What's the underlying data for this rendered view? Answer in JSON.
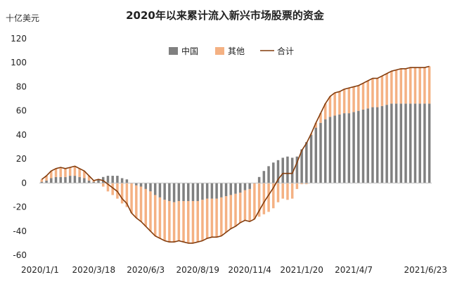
{
  "chart_data": {
    "type": "bar",
    "title": "2020年以来累计流入新兴市场股票的资金",
    "unit_label": "十亿美元",
    "ylim": [
      -60,
      120
    ],
    "y_ticks": [
      -60,
      -40,
      -20,
      0,
      20,
      40,
      60,
      80,
      100,
      120
    ],
    "x_tick_labels": [
      "2020/1/1",
      "2020/3/18",
      "2020/6/3",
      "2020/8/19",
      "2020/11/4",
      "2021/1/20",
      "2021/4/7",
      "2021/6/23"
    ],
    "legend": [
      "中国",
      "其他",
      "合计"
    ],
    "colors": {
      "china": "#808080",
      "other": "#f4b183",
      "total": "#843c0c"
    },
    "series": [
      {
        "name": "中国",
        "values": [
          1,
          2,
          4,
          5,
          5,
          5,
          6,
          6,
          5,
          4,
          2,
          1,
          3,
          5,
          6,
          6,
          6,
          4,
          3,
          0,
          -2,
          -3,
          -5,
          -7,
          -10,
          -12,
          -14,
          -15,
          -16,
          -15,
          -15,
          -15,
          -15,
          -15,
          -14,
          -13,
          -13,
          -13,
          -12,
          -11,
          -10,
          -9,
          -8,
          -6,
          -5,
          0,
          5,
          10,
          14,
          17,
          19,
          21,
          22,
          21,
          22,
          28,
          34,
          40,
          46,
          50,
          53,
          55,
          56,
          57,
          58,
          58,
          59,
          60,
          61,
          62,
          63,
          63,
          64,
          65,
          66,
          66,
          66,
          66,
          66,
          66,
          66,
          66,
          66
        ]
      },
      {
        "name": "其他",
        "values": [
          2,
          4,
          6,
          7,
          8,
          7,
          7,
          8,
          7,
          6,
          4,
          1,
          0,
          -3,
          -7,
          -10,
          -13,
          -17,
          -20,
          -25,
          -27,
          -29,
          -31,
          -33,
          -34,
          -34,
          -34,
          -34,
          -33,
          -33,
          -34,
          -35,
          -35,
          -34,
          -34,
          -33,
          -32,
          -32,
          -32,
          -30,
          -28,
          -27,
          -25,
          -25,
          -27,
          -30,
          -28,
          -26,
          -24,
          -21,
          -16,
          -13,
          -14,
          -13,
          -5,
          -1,
          -1,
          1,
          4,
          8,
          13,
          17,
          19,
          19,
          20,
          21,
          21,
          21,
          22,
          23,
          24,
          24,
          25,
          26,
          27,
          28,
          29,
          29,
          30,
          30,
          30,
          30,
          31
        ]
      },
      {
        "name": "合计",
        "values": [
          3,
          6,
          10,
          12,
          13,
          12,
          13,
          14,
          12,
          10,
          6,
          2,
          3,
          2,
          -1,
          -4,
          -7,
          -13,
          -17,
          -25,
          -29,
          -32,
          -36,
          -40,
          -44,
          -46,
          -48,
          -49,
          -49,
          -48,
          -49,
          -50,
          -50,
          -49,
          -48,
          -46,
          -45,
          -45,
          -44,
          -41,
          -38,
          -36,
          -33,
          -31,
          -32,
          -30,
          -23,
          -16,
          -10,
          -4,
          3,
          8,
          8,
          8,
          17,
          27,
          33,
          41,
          50,
          58,
          66,
          72,
          75,
          76,
          78,
          79,
          80,
          81,
          83,
          85,
          87,
          87,
          89,
          91,
          93,
          94,
          95,
          95,
          96,
          96,
          96,
          96,
          97
        ]
      }
    ]
  }
}
